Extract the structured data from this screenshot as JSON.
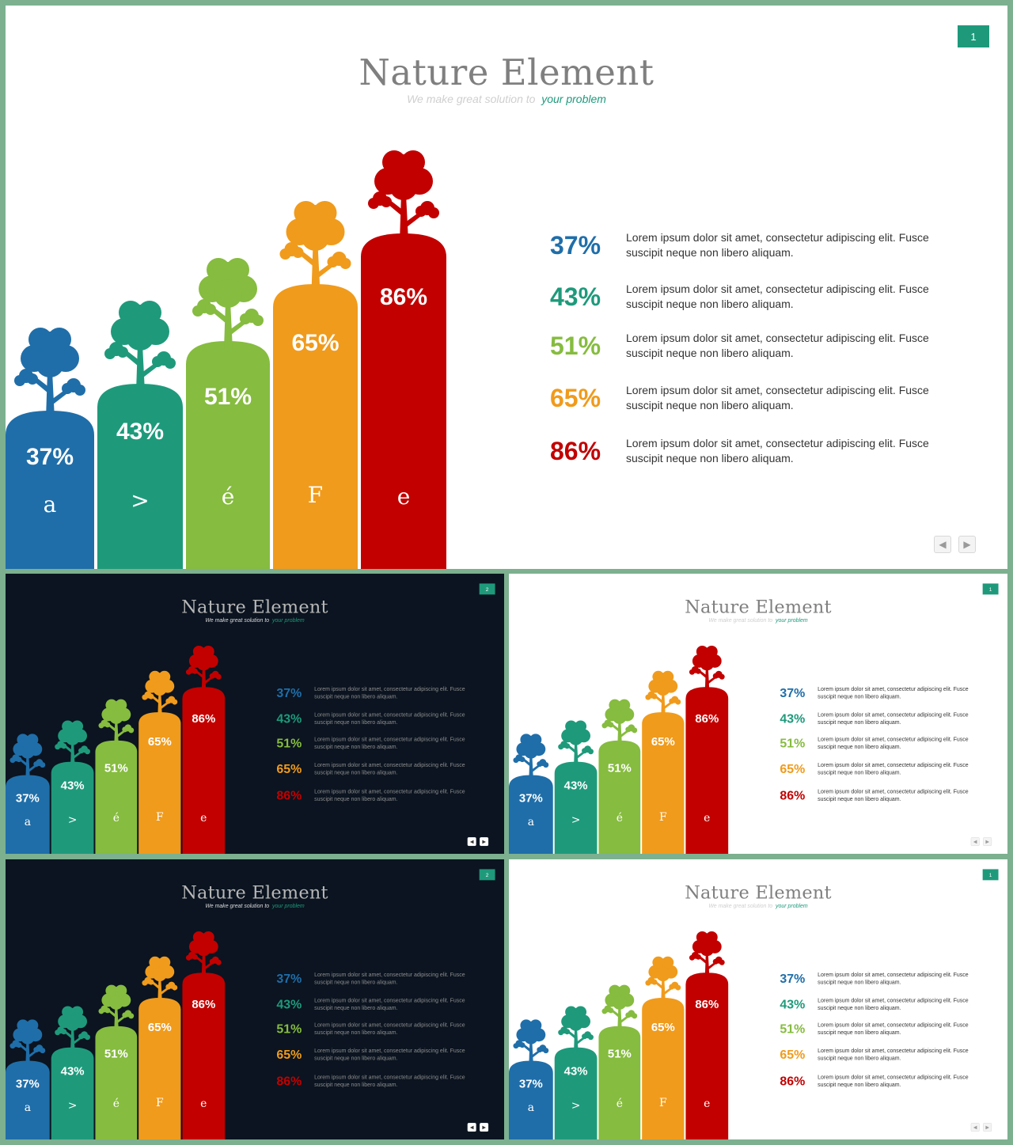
{
  "title": "Nature Element",
  "subtitle": {
    "part1": "We make great solution to",
    "part2": "your problem"
  },
  "bars": [
    {
      "value": "37%",
      "letter": "a",
      "color": "#1f6ea9"
    },
    {
      "value": "43%",
      "letter": ">",
      "color": "#1e9a7b"
    },
    {
      "value": "51%",
      "letter": "é",
      "color": "#86bc3f"
    },
    {
      "value": "65%",
      "letter": "F",
      "color": "#f09b1c"
    },
    {
      "value": "86%",
      "letter": "e",
      "color": "#c20000"
    }
  ],
  "legend": [
    {
      "value": "37%",
      "text": "Lorem ipsum dolor sit amet, consectetur adipiscing elit. Fusce suscipit neque non libero aliquam."
    },
    {
      "value": "43%",
      "text": "Lorem ipsum dolor sit amet, consectetur adipiscing elit. Fusce suscipit neque non libero aliquam."
    },
    {
      "value": "51%",
      "text": "Lorem ipsum dolor sit amet, consectetur adipiscing elit. Fusce suscipit neque non libero aliquam."
    },
    {
      "value": "65%",
      "text": "Lorem ipsum dolor sit amet, consectetur adipiscing elit. Fusce suscipit neque non libero aliquam."
    },
    {
      "value": "86%",
      "text": "Lorem ipsum dolor sit amet, consectetur adipiscing elit. Fusce suscipit neque non libero aliquam."
    }
  ],
  "slides": [
    {
      "theme": "light",
      "page": "1"
    },
    {
      "theme": "dark",
      "page": "2"
    },
    {
      "theme": "light",
      "page": "1"
    },
    {
      "theme": "dark",
      "page": "2"
    },
    {
      "theme": "light",
      "page": "1"
    }
  ],
  "nav": {
    "prev_icon": "triangle-left-icon",
    "next_icon": "triangle-right-icon",
    "prev_glyph": "◀",
    "next_glyph": "▶"
  },
  "colors": {
    "accent": "#1e9a7b",
    "frame": "#7cb08f",
    "dark_bg": "#0b1420"
  }
}
